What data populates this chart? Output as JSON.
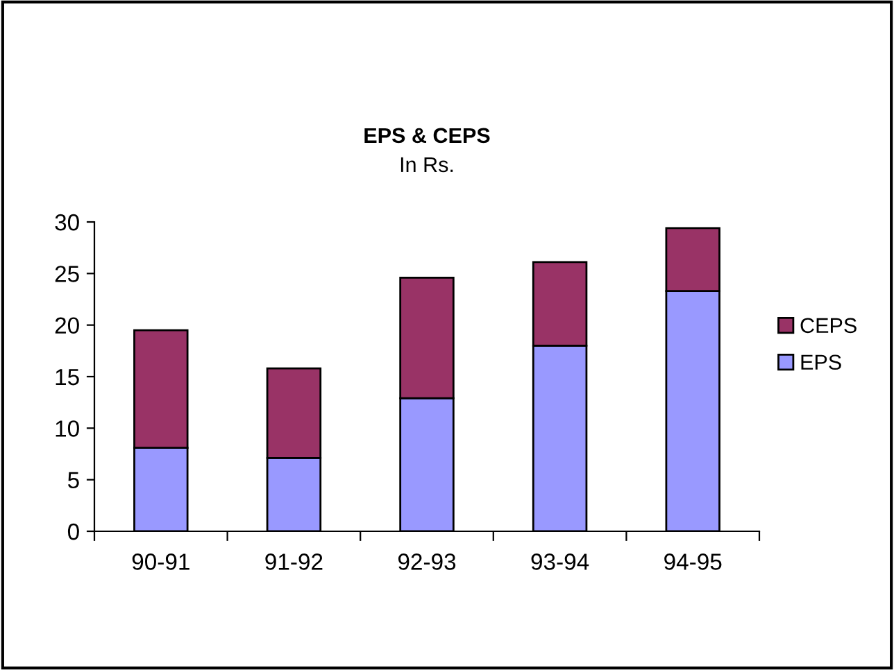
{
  "chart_data": {
    "type": "bar",
    "title": "EPS & CEPS",
    "subtitle": "In Rs.",
    "stacked": true,
    "categories": [
      "90-91",
      "91-92",
      "92-93",
      "93-94",
      "94-95"
    ],
    "series": [
      {
        "name": "EPS",
        "color": "#9999ff",
        "values": [
          8.1,
          7.1,
          12.9,
          18.0,
          23.3
        ]
      },
      {
        "name": "CEPS",
        "color": "#993366",
        "values": [
          11.4,
          8.7,
          11.7,
          8.1,
          6.1
        ]
      }
    ],
    "ylim": [
      0,
      30
    ],
    "yticks": [
      0,
      5,
      10,
      15,
      20,
      25,
      30
    ],
    "grid": false,
    "legend": "right"
  }
}
